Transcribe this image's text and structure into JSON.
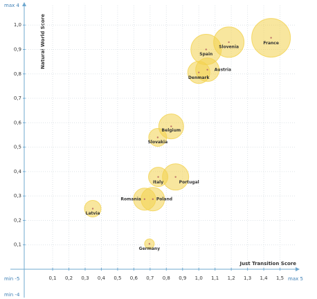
{
  "chart_data": {
    "type": "bubble",
    "x_label": "Just Transition Score",
    "y_label": "Natural World Score",
    "annotations": {
      "y_max": "max 4",
      "y_min": "min -4",
      "x_min": "min -5",
      "x_max": "max 5"
    },
    "xlim": [
      -0.075,
      1.6
    ],
    "ylim": [
      0,
      1.08
    ],
    "xticks": [
      {
        "value": 0.1,
        "label": "0,1"
      },
      {
        "value": 0.2,
        "label": "0,2"
      },
      {
        "value": 0.3,
        "label": "0,3"
      },
      {
        "value": 0.4,
        "label": "0,4"
      },
      {
        "value": 0.5,
        "label": "0,5"
      },
      {
        "value": 0.6,
        "label": "0,6"
      },
      {
        "value": 0.7,
        "label": "0,7"
      },
      {
        "value": 0.8,
        "label": "0,8"
      },
      {
        "value": 0.9,
        "label": "0,9"
      },
      {
        "value": 1.0,
        "label": "1,0"
      },
      {
        "value": 1.1,
        "label": "1,1"
      },
      {
        "value": 1.2,
        "label": "1,2"
      },
      {
        "value": 1.3,
        "label": "1,3"
      },
      {
        "value": 1.4,
        "label": "1,4"
      },
      {
        "value": 1.5,
        "label": "1,5"
      }
    ],
    "yticks": [
      {
        "value": 0.1,
        "label": "0,1"
      },
      {
        "value": 0.2,
        "label": "0,2"
      },
      {
        "value": 0.3,
        "label": "0,3"
      },
      {
        "value": 0.4,
        "label": "0,4"
      },
      {
        "value": 0.5,
        "label": "0,5"
      },
      {
        "value": 0.6,
        "label": "0,6"
      },
      {
        "value": 0.7,
        "label": "0,7"
      },
      {
        "value": 0.8,
        "label": "0,8"
      },
      {
        "value": 0.9,
        "label": "0,9"
      },
      {
        "value": 1.0,
        "label": "1,0"
      }
    ],
    "color": "#f3d24e",
    "points": [
      {
        "name": "France",
        "x": 1.445,
        "y": 0.948,
        "size": 28
      },
      {
        "name": "Slovenia",
        "x": 1.185,
        "y": 0.93,
        "size": 22
      },
      {
        "name": "Spain",
        "x": 1.045,
        "y": 0.9,
        "size": 22
      },
      {
        "name": "Austria",
        "x": 1.053,
        "y": 0.817,
        "size": 17
      },
      {
        "name": "Denmark",
        "x": 1.0,
        "y": 0.806,
        "size": 16
      },
      {
        "name": "Belgium",
        "x": 0.83,
        "y": 0.585,
        "size": 18
      },
      {
        "name": "Slovakia",
        "x": 0.747,
        "y": 0.54,
        "size": 13
      },
      {
        "name": "Italy",
        "x": 0.75,
        "y": 0.378,
        "size": 14
      },
      {
        "name": "Portugal",
        "x": 0.857,
        "y": 0.378,
        "size": 19
      },
      {
        "name": "Romania",
        "x": 0.666,
        "y": 0.287,
        "size": 16
      },
      {
        "name": "Poland",
        "x": 0.717,
        "y": 0.287,
        "size": 17
      },
      {
        "name": "Latvia",
        "x": 0.347,
        "y": 0.248,
        "size": 12
      },
      {
        "name": "Germany",
        "x": 0.696,
        "y": 0.104,
        "size": 7
      }
    ]
  }
}
